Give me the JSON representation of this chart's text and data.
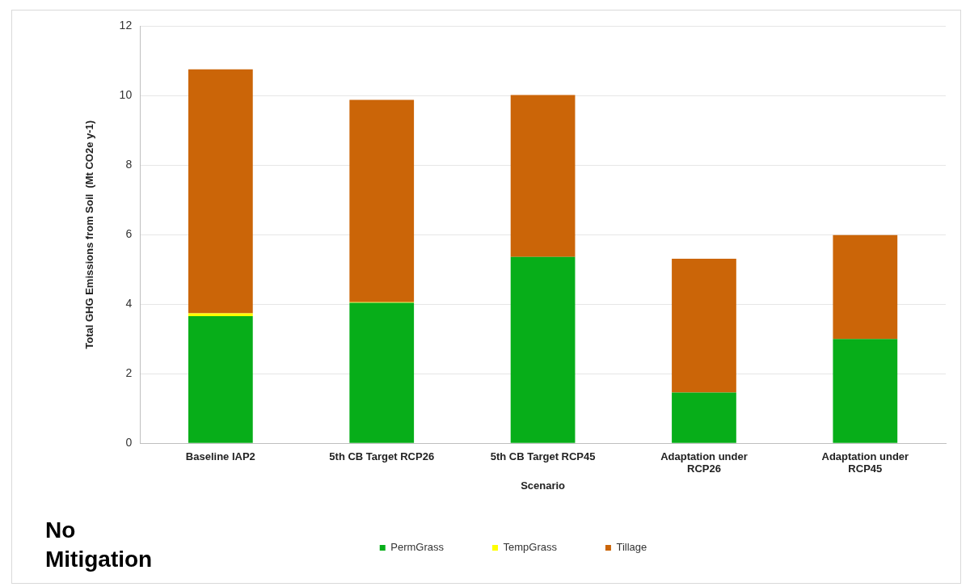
{
  "chart_data": {
    "type": "bar",
    "stacked": true,
    "xlabel": "Scenario",
    "ylabel": "Total GHG Emissions from Soil  (Mt CO2e y-1)",
    "categories": [
      "Baseline IAP2",
      "5th CB Target RCP26",
      "5th CB Target RCP45",
      "Adaptation under RCP26",
      "Adaptation under RCP45"
    ],
    "series": [
      {
        "name": "PermGrass",
        "color": "#07ae19",
        "values": [
          3.66,
          4.04,
          5.36,
          1.46,
          3.0
        ]
      },
      {
        "name": "TempGrass",
        "color": "#ffff00",
        "values": [
          0.08,
          0.02,
          0,
          0,
          0
        ]
      },
      {
        "name": "Tillage",
        "color": "#cb6508",
        "values": [
          7.02,
          5.82,
          4.66,
          3.85,
          2.99
        ]
      }
    ],
    "ylim": [
      0,
      12
    ],
    "yticks": [
      0,
      2,
      4,
      6,
      8,
      10,
      12
    ],
    "grid": "y",
    "legend": "bottom",
    "annotations": [
      "No Mitigation"
    ]
  }
}
